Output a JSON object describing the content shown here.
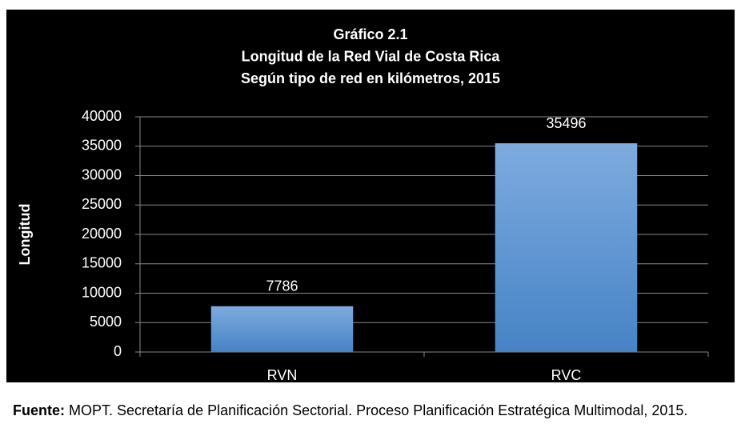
{
  "chart_data": {
    "type": "bar",
    "title": [
      "Gráfico 2.1",
      "Longitud de la Red Vial de Costa Rica",
      "Según tipo de red en kilómetros, 2015"
    ],
    "ylabel": "Longitud",
    "categories": [
      "RVN",
      "RVC"
    ],
    "values": [
      7786,
      35496
    ],
    "ylim": [
      0,
      40000
    ],
    "yticks": [
      0,
      5000,
      10000,
      15000,
      20000,
      25000,
      30000,
      35000,
      40000
    ],
    "grid": true,
    "color": [
      "#7eabdf",
      "#4683c6"
    ]
  },
  "source": {
    "label": "Fuente:",
    "text": "MOPT. Secretaría de Planificación Sectorial. Proceso Planificación Estratégica Multimodal, 2015."
  }
}
